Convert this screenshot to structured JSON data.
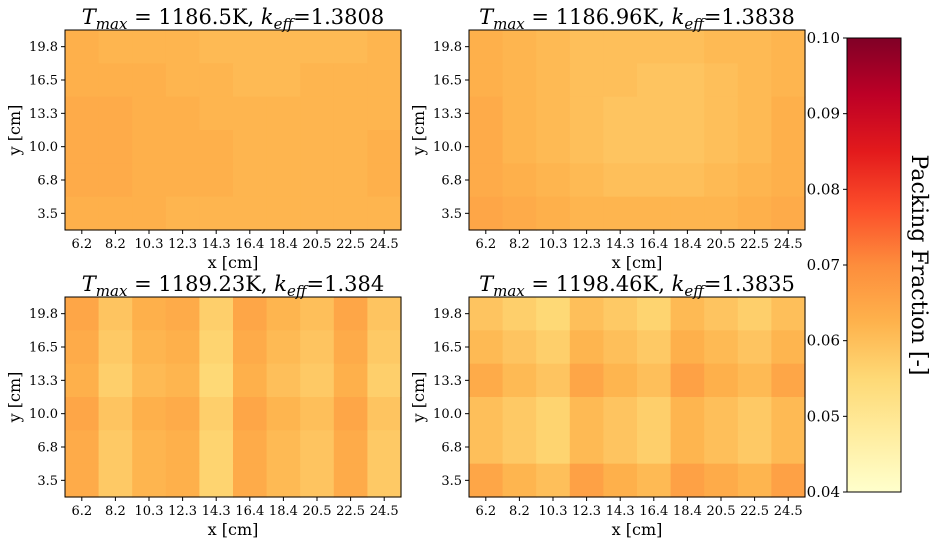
{
  "chart_data": [
    {
      "type": "heatmap",
      "title_var": "T",
      "title_var_sub": "max",
      "title_value": " = 1186.5K, ",
      "title_k": "k",
      "title_k_sub": "eff",
      "title_k_value": "=1.3808",
      "xlabel": "x [cm]",
      "ylabel": "y [cm]",
      "x_ticks": [
        "6.2",
        "8.2",
        "10.3",
        "12.3",
        "14.3",
        "16.4",
        "18.4",
        "20.5",
        "22.5",
        "24.5"
      ],
      "y_ticks": [
        "19.8",
        "16.5",
        "13.3",
        "10.0",
        "6.8",
        "3.5"
      ],
      "values": [
        [
          0.063,
          0.062,
          0.062,
          0.062,
          0.061,
          0.061,
          0.061,
          0.061,
          0.061,
          0.062
        ],
        [
          0.063,
          0.063,
          0.063,
          0.062,
          0.062,
          0.061,
          0.061,
          0.062,
          0.062,
          0.062
        ],
        [
          0.064,
          0.064,
          0.063,
          0.063,
          0.062,
          0.062,
          0.062,
          0.062,
          0.062,
          0.062
        ],
        [
          0.064,
          0.064,
          0.063,
          0.063,
          0.063,
          0.062,
          0.062,
          0.062,
          0.062,
          0.063
        ],
        [
          0.064,
          0.064,
          0.063,
          0.063,
          0.063,
          0.062,
          0.062,
          0.062,
          0.062,
          0.063
        ],
        [
          0.063,
          0.063,
          0.063,
          0.062,
          0.062,
          0.062,
          0.062,
          0.062,
          0.062,
          0.062
        ]
      ]
    },
    {
      "type": "heatmap",
      "title_var": "T",
      "title_var_sub": "max",
      "title_value": " = 1186.96K, ",
      "title_k": "k",
      "title_k_sub": "eff",
      "title_k_value": "=1.3838",
      "xlabel": "x [cm]",
      "ylabel": "y [cm]",
      "x_ticks": [
        "6.2",
        "8.2",
        "10.3",
        "12.3",
        "14.3",
        "16.4",
        "18.4",
        "20.5",
        "22.5",
        "24.5"
      ],
      "y_ticks": [
        "19.8",
        "16.5",
        "13.3",
        "10.0",
        "6.8",
        "3.5"
      ],
      "values": [
        [
          0.063,
          0.062,
          0.061,
          0.06,
          0.06,
          0.06,
          0.06,
          0.061,
          0.061,
          0.062
        ],
        [
          0.063,
          0.062,
          0.061,
          0.06,
          0.06,
          0.059,
          0.059,
          0.06,
          0.061,
          0.062
        ],
        [
          0.064,
          0.062,
          0.061,
          0.06,
          0.059,
          0.059,
          0.059,
          0.06,
          0.061,
          0.063
        ],
        [
          0.064,
          0.062,
          0.061,
          0.06,
          0.059,
          0.059,
          0.059,
          0.06,
          0.061,
          0.063
        ],
        [
          0.064,
          0.063,
          0.062,
          0.061,
          0.06,
          0.06,
          0.06,
          0.061,
          0.062,
          0.063
        ],
        [
          0.065,
          0.064,
          0.063,
          0.062,
          0.062,
          0.062,
          0.062,
          0.062,
          0.063,
          0.064
        ]
      ]
    },
    {
      "type": "heatmap",
      "title_var": "T",
      "title_var_sub": "max",
      "title_value": " = 1189.23K, ",
      "title_k": "k",
      "title_k_sub": "eff",
      "title_k_value": "=1.384",
      "xlabel": "x [cm]",
      "ylabel": "y [cm]",
      "x_ticks": [
        "6.2",
        "8.2",
        "10.3",
        "12.3",
        "14.3",
        "16.4",
        "18.4",
        "20.5",
        "22.5",
        "24.5"
      ],
      "y_ticks": [
        "19.8",
        "16.5",
        "13.3",
        "10.0",
        "6.8",
        "3.5"
      ],
      "values": [
        [
          0.065,
          0.059,
          0.063,
          0.064,
          0.057,
          0.065,
          0.062,
          0.06,
          0.065,
          0.059
        ],
        [
          0.064,
          0.058,
          0.062,
          0.063,
          0.056,
          0.064,
          0.061,
          0.059,
          0.064,
          0.058
        ],
        [
          0.063,
          0.057,
          0.061,
          0.062,
          0.055,
          0.063,
          0.06,
          0.058,
          0.063,
          0.057
        ],
        [
          0.065,
          0.059,
          0.063,
          0.064,
          0.057,
          0.065,
          0.062,
          0.06,
          0.065,
          0.059
        ],
        [
          0.064,
          0.058,
          0.062,
          0.063,
          0.056,
          0.064,
          0.061,
          0.059,
          0.064,
          0.058
        ],
        [
          0.064,
          0.058,
          0.062,
          0.063,
          0.056,
          0.064,
          0.061,
          0.059,
          0.064,
          0.058
        ]
      ]
    },
    {
      "type": "heatmap",
      "title_var": "T",
      "title_var_sub": "max",
      "title_value": " = 1198.46K, ",
      "title_k": "k",
      "title_k_sub": "eff",
      "title_k_value": "=1.3835",
      "xlabel": "x [cm]",
      "ylabel": "y [cm]",
      "x_ticks": [
        "6.2",
        "8.2",
        "10.3",
        "12.3",
        "14.3",
        "16.4",
        "18.4",
        "20.5",
        "22.5",
        "24.5"
      ],
      "y_ticks": [
        "19.8",
        "16.5",
        "13.3",
        "10.0",
        "6.8",
        "3.5"
      ],
      "values": [
        [
          0.059,
          0.057,
          0.055,
          0.06,
          0.058,
          0.056,
          0.061,
          0.059,
          0.057,
          0.06
        ],
        [
          0.061,
          0.059,
          0.057,
          0.062,
          0.06,
          0.058,
          0.063,
          0.061,
          0.059,
          0.062
        ],
        [
          0.064,
          0.061,
          0.059,
          0.065,
          0.062,
          0.06,
          0.066,
          0.063,
          0.061,
          0.065
        ],
        [
          0.06,
          0.058,
          0.056,
          0.061,
          0.059,
          0.057,
          0.062,
          0.06,
          0.058,
          0.061
        ],
        [
          0.06,
          0.058,
          0.056,
          0.061,
          0.059,
          0.057,
          0.062,
          0.06,
          0.058,
          0.061
        ],
        [
          0.065,
          0.062,
          0.06,
          0.066,
          0.063,
          0.061,
          0.066,
          0.064,
          0.062,
          0.066
        ]
      ]
    }
  ],
  "colorbar": {
    "label": "Packing Fraction [-]",
    "min": 0.04,
    "max": 0.1,
    "ticks": [
      "0.04",
      "0.05",
      "0.06",
      "0.07",
      "0.08",
      "0.09",
      "0.10"
    ],
    "colormap": "YlOrRd",
    "colors": [
      "#ffffcc",
      "#ffeda0",
      "#fed976",
      "#feb24c",
      "#fd8d3c",
      "#fc4e2a",
      "#e31a1c",
      "#bd0026",
      "#800026"
    ]
  }
}
